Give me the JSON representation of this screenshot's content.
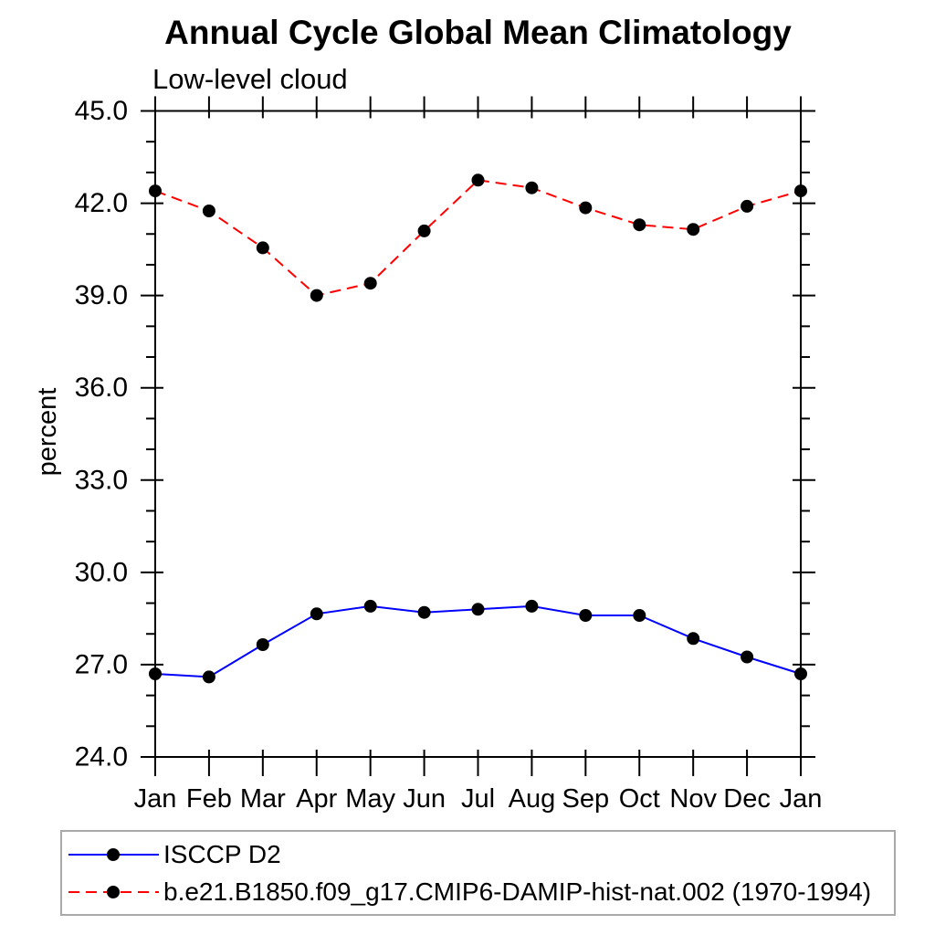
{
  "chart_data": {
    "type": "line",
    "title": "Annual Cycle Global Mean Climatology",
    "subtitle": "Low-level cloud",
    "ylabel": "percent",
    "x_categories": [
      "Jan",
      "Feb",
      "Mar",
      "Apr",
      "May",
      "Jun",
      "Jul",
      "Aug",
      "Sep",
      "Oct",
      "Nov",
      "Dec",
      "Jan"
    ],
    "ylim": [
      24.0,
      45.0
    ],
    "y_major_ticks": [
      45.0,
      42.0,
      39.0,
      36.0,
      33.0,
      30.0,
      27.0,
      24.0
    ],
    "y_major_labels": [
      "45.0",
      "42.0",
      "39.0",
      "36.0",
      "33.0",
      "30.0",
      "27.0",
      "24.0"
    ],
    "y_minor_step": 1.0,
    "grid": false,
    "legend_position": "bottom",
    "series": [
      {
        "name": "ISCCP D2",
        "color": "#0000ff",
        "line_style": "solid",
        "marker": "circle",
        "marker_color": "#000000",
        "values": [
          26.7,
          26.6,
          27.65,
          28.65,
          28.9,
          28.7,
          28.8,
          28.9,
          28.6,
          28.6,
          27.85,
          27.25,
          26.7
        ]
      },
      {
        "name": "b.e21.B1850.f09_g17.CMIP6-DAMIP-hist-nat.002 (1970-1994)",
        "color": "#ff0000",
        "line_style": "dashed",
        "marker": "circle",
        "marker_color": "#000000",
        "values": [
          42.4,
          41.75,
          40.55,
          39.0,
          39.4,
          41.1,
          42.75,
          42.5,
          41.85,
          41.3,
          41.15,
          41.9,
          42.4
        ]
      }
    ]
  },
  "colors": {
    "axis": "#000000",
    "legend_border": "#a9a9a9",
    "background": "#ffffff",
    "series_blue": "#0000ff",
    "series_red": "#ff0000",
    "marker": "#000000"
  }
}
